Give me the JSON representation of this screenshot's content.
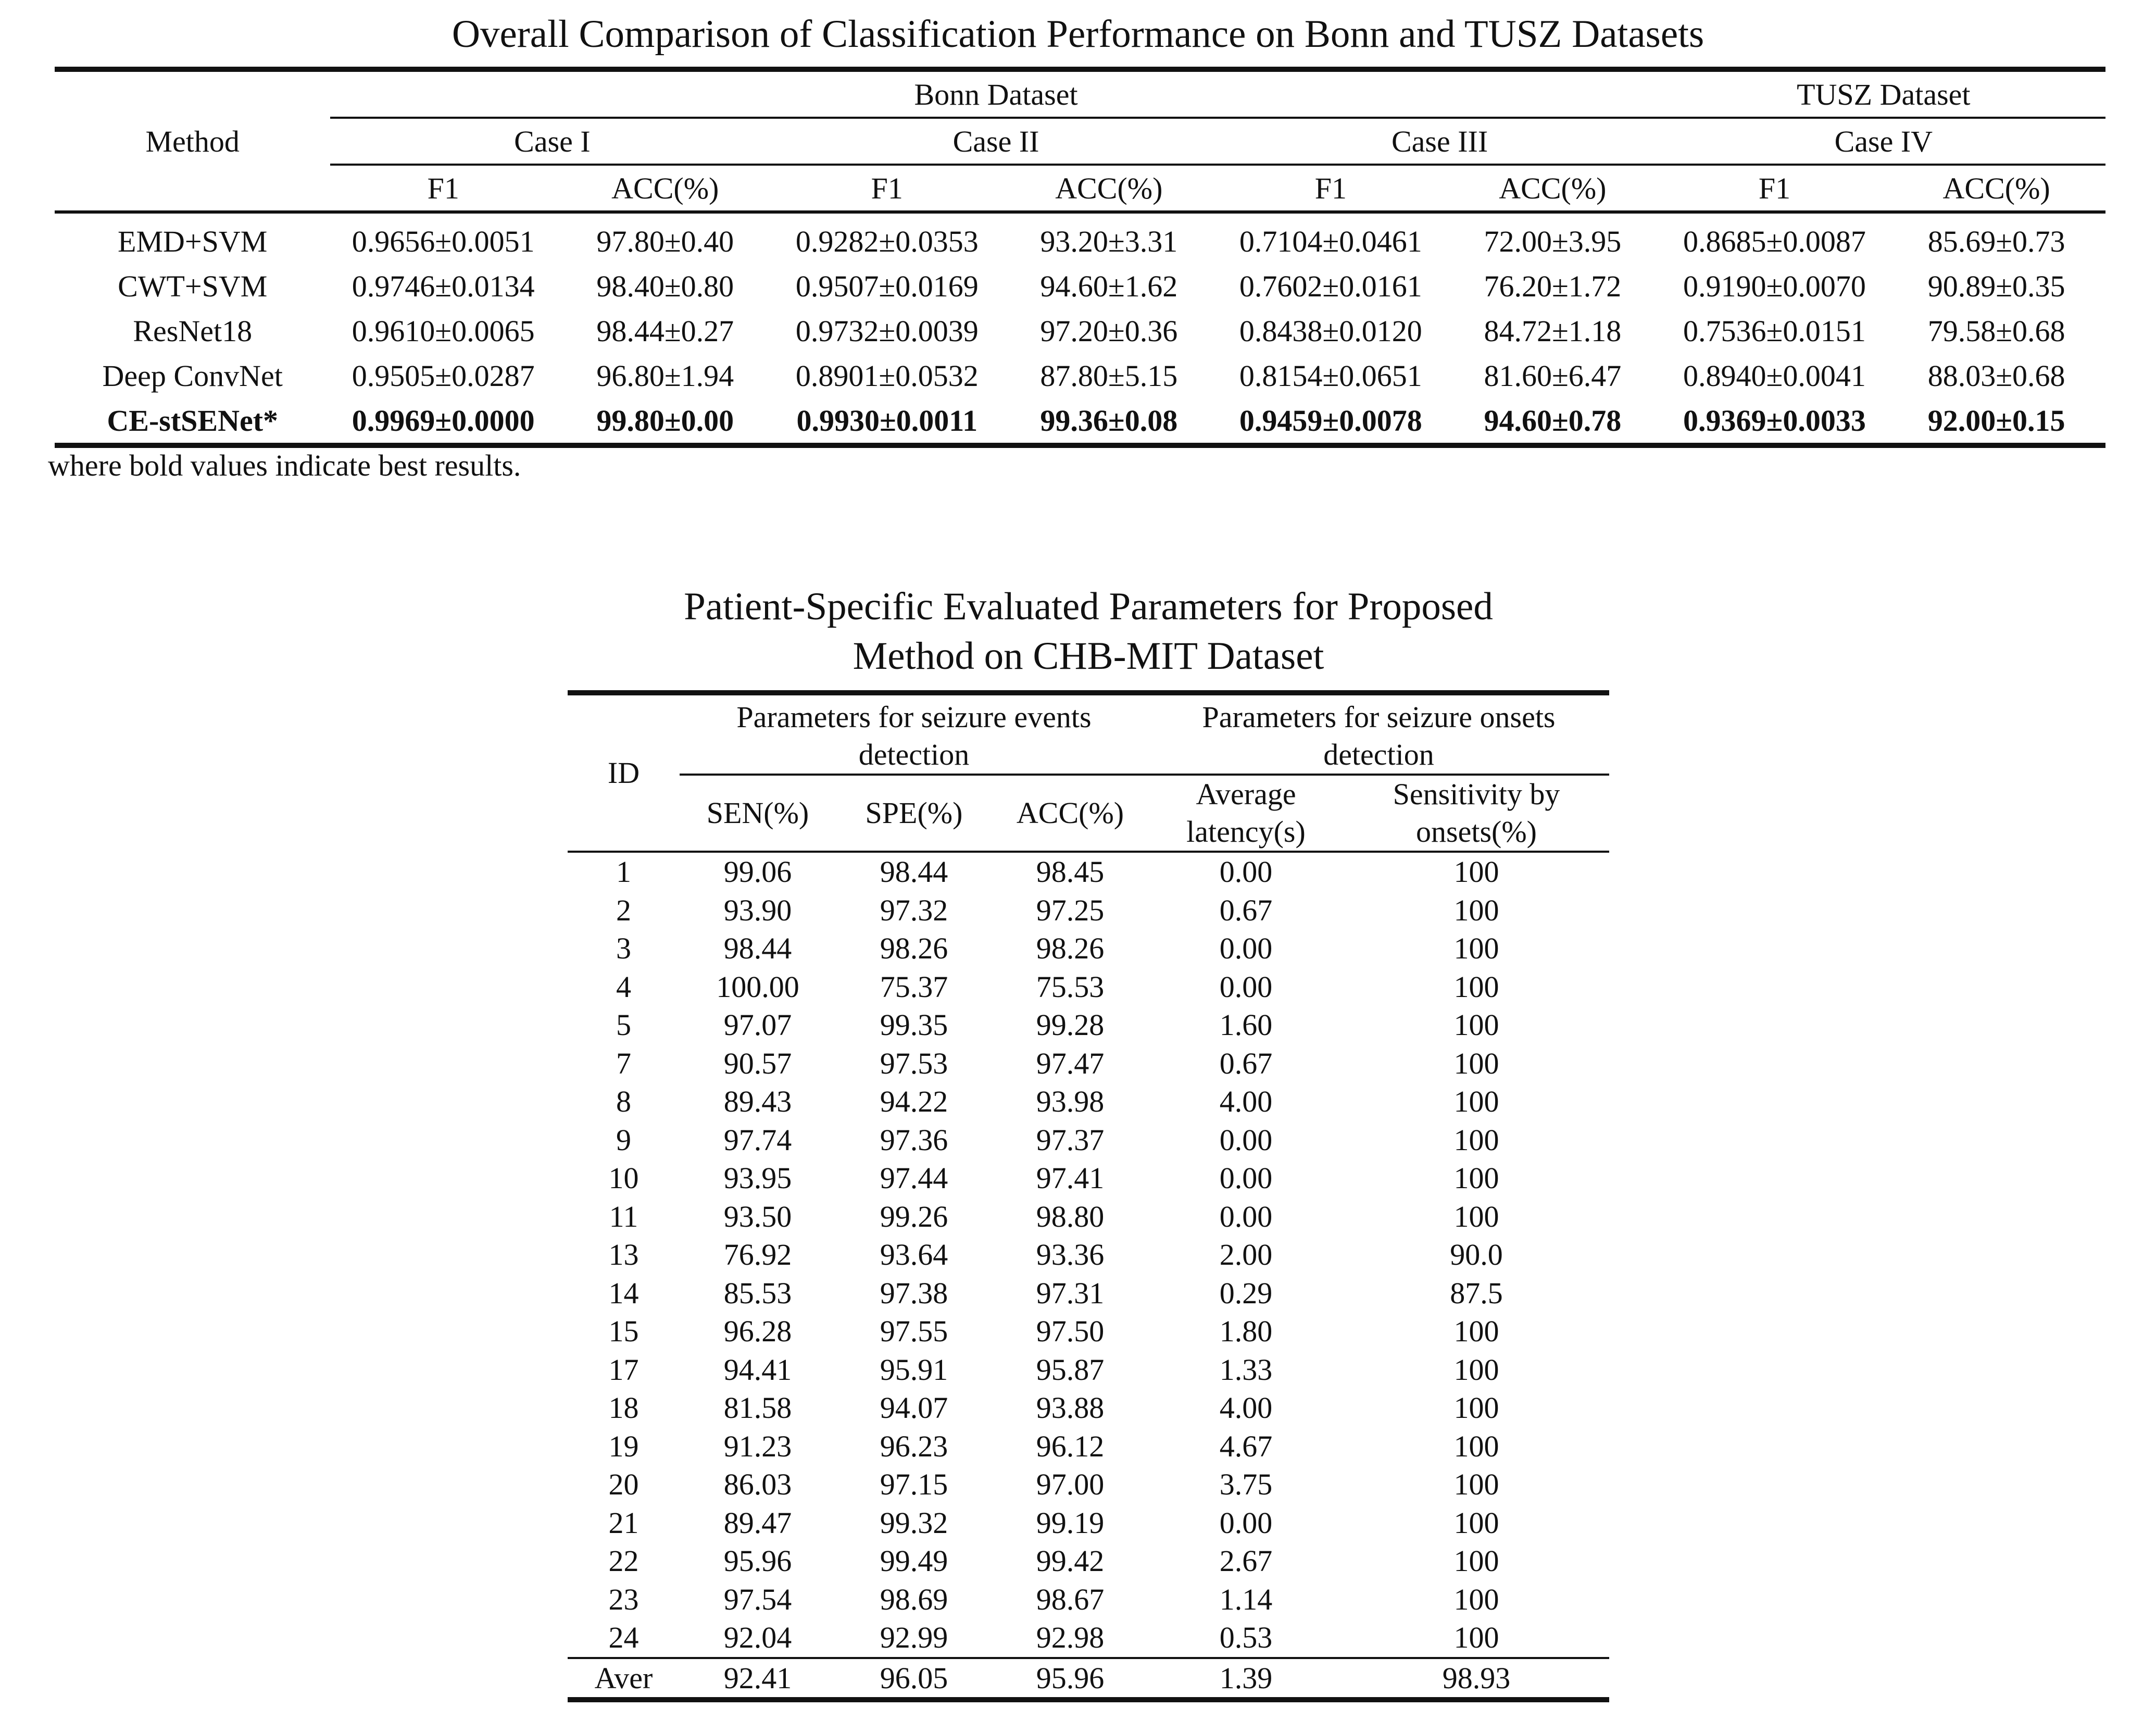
{
  "table1": {
    "title": "Overall Comparison of Classification Performance on Bonn and TUSZ Datasets",
    "method_header": "Method",
    "bonn_header": "Bonn Dataset",
    "tusz_header": "TUSZ Dataset",
    "cases": [
      "Case I",
      "Case II",
      "Case III",
      "Case IV"
    ],
    "f1_label": "F1",
    "acc_label": "ACC(%)",
    "rows": [
      {
        "method": "EMD+SVM",
        "values": [
          "0.9656±0.0051",
          "97.80±0.40",
          "0.9282±0.0353",
          "93.20±3.31",
          "0.7104±0.0461",
          "72.00±3.95",
          "0.8685±0.0087",
          "85.69±0.73"
        ]
      },
      {
        "method": "CWT+SVM",
        "values": [
          "0.9746±0.0134",
          "98.40±0.80",
          "0.9507±0.0169",
          "94.60±1.62",
          "0.7602±0.0161",
          "76.20±1.72",
          "0.9190±0.0070",
          "90.89±0.35"
        ]
      },
      {
        "method": "ResNet18",
        "values": [
          "0.9610±0.0065",
          "98.44±0.27",
          "0.9732±0.0039",
          "97.20±0.36",
          "0.8438±0.0120",
          "84.72±1.18",
          "0.7536±0.0151",
          "79.58±0.68"
        ]
      },
      {
        "method": "Deep ConvNet",
        "values": [
          "0.9505±0.0287",
          "96.80±1.94",
          "0.8901±0.0532",
          "87.80±5.15",
          "0.8154±0.0651",
          "81.60±6.47",
          "0.8940±0.0041",
          "88.03±0.68"
        ]
      },
      {
        "method": "CE-stSENet*",
        "values": [
          "0.9969±0.0000",
          "99.80±0.00",
          "0.9930±0.0011",
          "99.36±0.08",
          "0.9459±0.0078",
          "94.60±0.78",
          "0.9369±0.0033",
          "92.00±0.15"
        ]
      }
    ],
    "note": "where bold values indicate best results."
  },
  "table2": {
    "title_line1": "Patient-Specific Evaluated Parameters for Proposed",
    "title_line2": "Method on CHB-MIT Dataset",
    "id_header": "ID",
    "group1_header": "Parameters for seizure events detection",
    "group2_header": "Parameters for seizure onsets detection",
    "columns": [
      "SEN(%)",
      "SPE(%)",
      "ACC(%)",
      "Average latency(s)",
      "Sensitivity by onsets(%)"
    ],
    "rows": [
      {
        "id": "1",
        "values": [
          "99.06",
          "98.44",
          "98.45",
          "0.00",
          "100"
        ]
      },
      {
        "id": "2",
        "values": [
          "93.90",
          "97.32",
          "97.25",
          "0.67",
          "100"
        ]
      },
      {
        "id": "3",
        "values": [
          "98.44",
          "98.26",
          "98.26",
          "0.00",
          "100"
        ]
      },
      {
        "id": "4",
        "values": [
          "100.00",
          "75.37",
          "75.53",
          "0.00",
          "100"
        ]
      },
      {
        "id": "5",
        "values": [
          "97.07",
          "99.35",
          "99.28",
          "1.60",
          "100"
        ]
      },
      {
        "id": "7",
        "values": [
          "90.57",
          "97.53",
          "97.47",
          "0.67",
          "100"
        ]
      },
      {
        "id": "8",
        "values": [
          "89.43",
          "94.22",
          "93.98",
          "4.00",
          "100"
        ]
      },
      {
        "id": "9",
        "values": [
          "97.74",
          "97.36",
          "97.37",
          "0.00",
          "100"
        ]
      },
      {
        "id": "10",
        "values": [
          "93.95",
          "97.44",
          "97.41",
          "0.00",
          "100"
        ]
      },
      {
        "id": "11",
        "values": [
          "93.50",
          "99.26",
          "98.80",
          "0.00",
          "100"
        ]
      },
      {
        "id": "13",
        "values": [
          "76.92",
          "93.64",
          "93.36",
          "2.00",
          "90.0"
        ]
      },
      {
        "id": "14",
        "values": [
          "85.53",
          "97.38",
          "97.31",
          "0.29",
          "87.5"
        ]
      },
      {
        "id": "15",
        "values": [
          "96.28",
          "97.55",
          "97.50",
          "1.80",
          "100"
        ]
      },
      {
        "id": "17",
        "values": [
          "94.41",
          "95.91",
          "95.87",
          "1.33",
          "100"
        ]
      },
      {
        "id": "18",
        "values": [
          "81.58",
          "94.07",
          "93.88",
          "4.00",
          "100"
        ]
      },
      {
        "id": "19",
        "values": [
          "91.23",
          "96.23",
          "96.12",
          "4.67",
          "100"
        ]
      },
      {
        "id": "20",
        "values": [
          "86.03",
          "97.15",
          "97.00",
          "3.75",
          "100"
        ]
      },
      {
        "id": "21",
        "values": [
          "89.47",
          "99.32",
          "99.19",
          "0.00",
          "100"
        ]
      },
      {
        "id": "22",
        "values": [
          "95.96",
          "99.49",
          "99.42",
          "2.67",
          "100"
        ]
      },
      {
        "id": "23",
        "values": [
          "97.54",
          "98.69",
          "98.67",
          "1.14",
          "100"
        ]
      },
      {
        "id": "24",
        "values": [
          "92.04",
          "92.99",
          "92.98",
          "0.53",
          "100"
        ]
      }
    ],
    "average": {
      "id": "Aver",
      "values": [
        "92.41",
        "96.05",
        "95.96",
        "1.39",
        "98.93"
      ]
    }
  }
}
